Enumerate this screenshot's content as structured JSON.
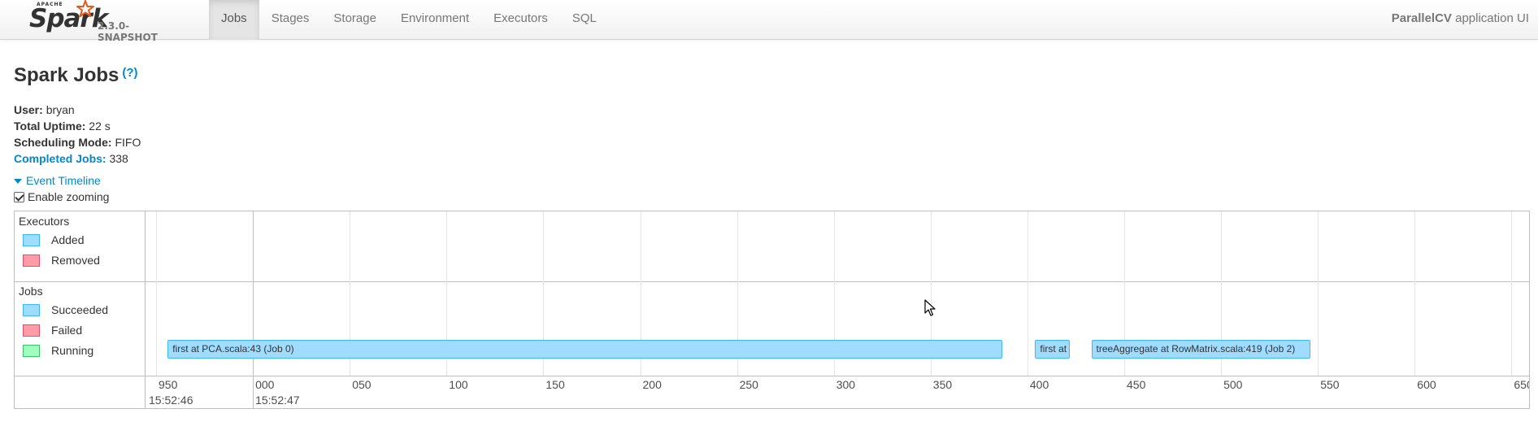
{
  "navbar": {
    "logo_apache": "APACHE",
    "logo_spark": "Spark",
    "version": "2.3.0-SNAPSHOT",
    "tabs": [
      {
        "label": "Jobs",
        "active": true
      },
      {
        "label": "Stages",
        "active": false
      },
      {
        "label": "Storage",
        "active": false
      },
      {
        "label": "Environment",
        "active": false
      },
      {
        "label": "Executors",
        "active": false
      },
      {
        "label": "SQL",
        "active": false
      }
    ],
    "app_name": "ParallelCV",
    "app_suffix": " application UI"
  },
  "page": {
    "title": "Spark Jobs",
    "help": "(?)"
  },
  "info": {
    "user_label": "User:",
    "user_value": "bryan",
    "uptime_label": "Total Uptime:",
    "uptime_value": "22 s",
    "scheduling_label": "Scheduling Mode:",
    "scheduling_value": "FIFO",
    "completed_label": "Completed Jobs:",
    "completed_value": "338"
  },
  "timeline_controls": {
    "event_timeline": "Event Timeline",
    "enable_zooming": "Enable zooming",
    "zoom_checked": true
  },
  "timeline": {
    "executors_group": "Executors",
    "executor_legend": [
      {
        "label": "Added",
        "fill": "#a0dcff",
        "border": "#3eb7ff"
      },
      {
        "label": "Removed",
        "fill": "#ff9ca8",
        "border": "#e74c6a"
      }
    ],
    "jobs_group": "Jobs",
    "job_legend": [
      {
        "label": "Succeeded",
        "fill": "#a0dcff",
        "border": "#3eb7ff"
      },
      {
        "label": "Failed",
        "fill": "#ff9ca8",
        "border": "#e74c6a"
      },
      {
        "label": "Running",
        "fill": "#a0ffbf",
        "border": "#3cc26b"
      }
    ],
    "axis_ticks": [
      "950",
      "000",
      "050",
      "100",
      "150",
      "200",
      "250",
      "300",
      "350",
      "400",
      "450",
      "500",
      "550",
      "600",
      "650"
    ],
    "major_ticks": [
      "15:52:46",
      "15:52:47"
    ],
    "jobs": [
      {
        "label": "first at PCA.scala:43 (Job 0)",
        "start_ms": 956,
        "end_ms": 1387
      },
      {
        "label": "first at",
        "start_ms": 1404,
        "end_ms": 1422
      },
      {
        "label": "treeAggregate at RowMatrix.scala:419 (Job 2)",
        "start_ms": 1433,
        "end_ms": 1546
      }
    ]
  }
}
